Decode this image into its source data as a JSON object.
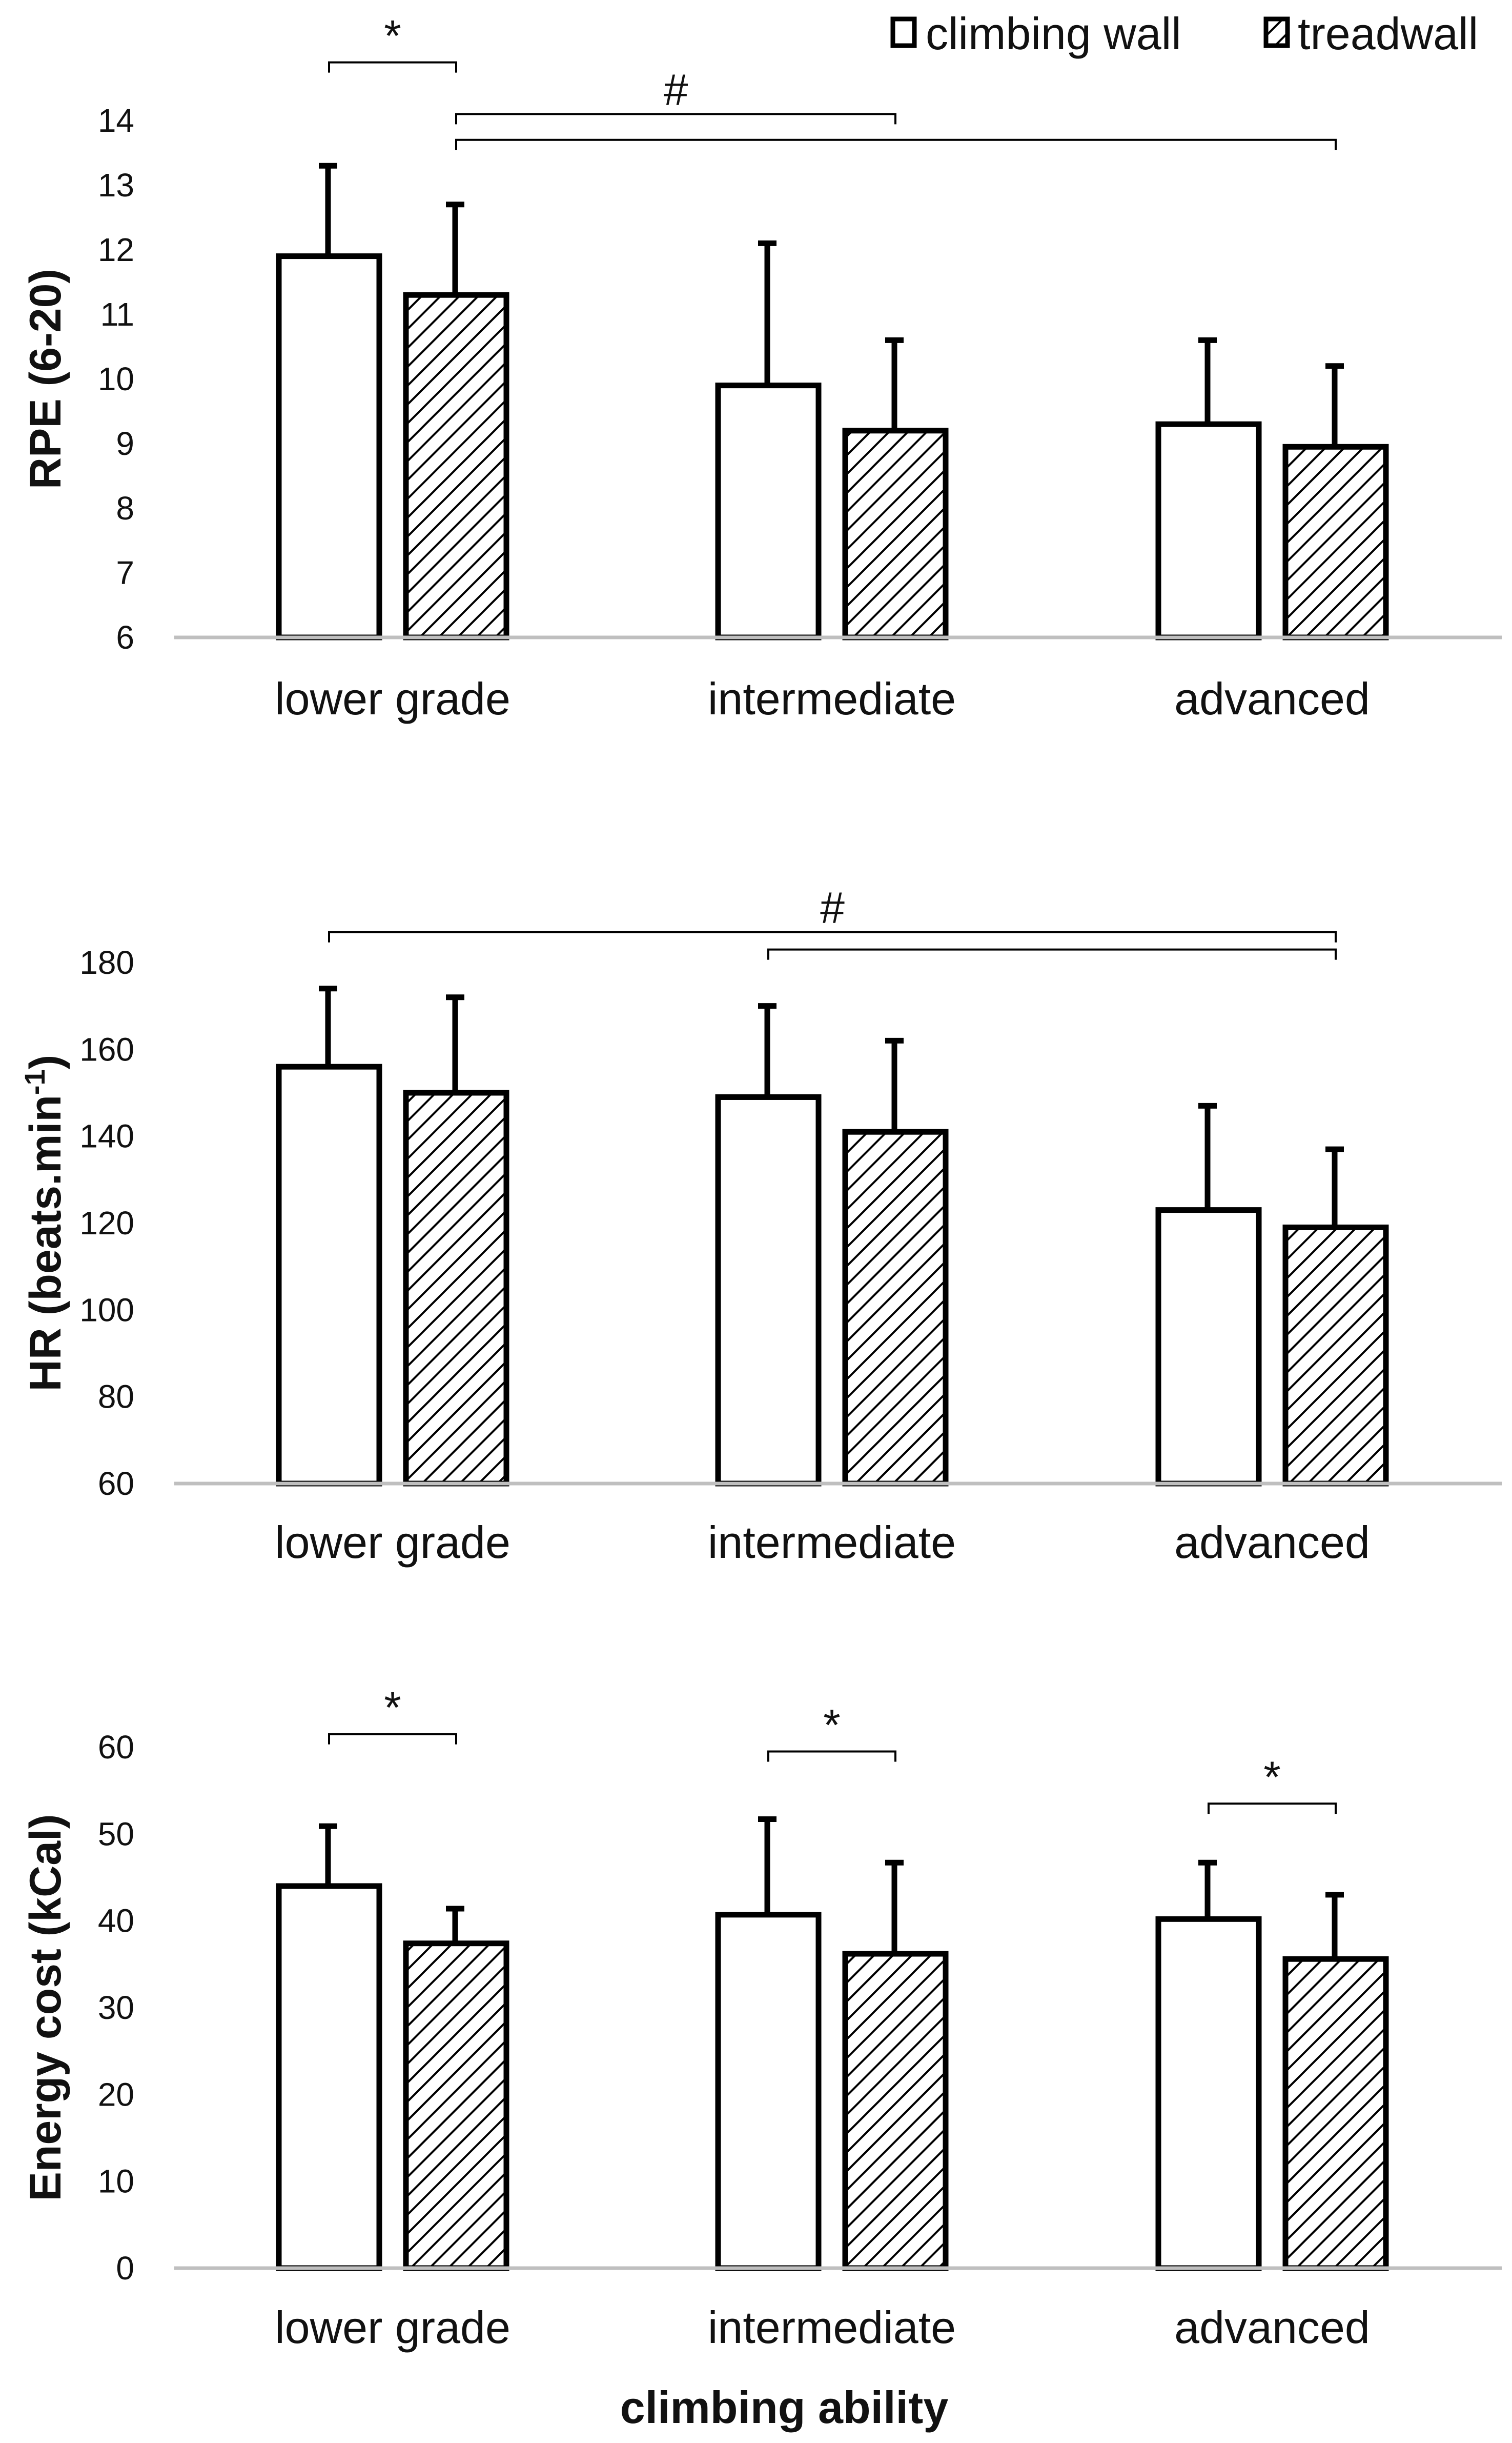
{
  "legend": {
    "series_0": "climbing wall",
    "series_1": "treadwall"
  },
  "chart_data": [
    {
      "type": "bar",
      "panel": "top",
      "ylabel": "RPE (6-20)",
      "xlabel": "",
      "ylim": [
        6,
        14
      ],
      "yticks": [
        6,
        7,
        8,
        9,
        10,
        11,
        12,
        13,
        14
      ],
      "categories": [
        "lower grade",
        "intermediate",
        "advanced"
      ],
      "series": [
        {
          "name": "climbing wall",
          "values": [
            11.9,
            9.9,
            9.3
          ],
          "errors": [
            1.4,
            2.2,
            1.3
          ]
        },
        {
          "name": "treadwall",
          "values": [
            11.3,
            9.2,
            8.95
          ],
          "errors": [
            1.4,
            1.4,
            1.25
          ]
        }
      ],
      "annotations": [
        {
          "symbol": "*",
          "from": {
            "category": 0,
            "series": 0
          },
          "to": {
            "category": 0,
            "series": 1
          },
          "level": 14.9
        },
        {
          "symbol": "#",
          "from": {
            "category": 0,
            "series": 1
          },
          "to": {
            "category": 1,
            "series": 1
          },
          "level": 14.1
        },
        {
          "symbol": "",
          "from": {
            "category": 0,
            "series": 1
          },
          "to": {
            "category": 2,
            "series": 1
          },
          "level": 13.7
        }
      ]
    },
    {
      "type": "bar",
      "panel": "middle",
      "ylabel": "HR (beats.min",
      "ylabel_sup": "-1",
      "ylabel_tail": ")",
      "xlabel": "",
      "ylim": [
        60,
        180
      ],
      "yticks": [
        60,
        80,
        100,
        120,
        140,
        160,
        180
      ],
      "categories": [
        "lower grade",
        "intermediate",
        "advanced"
      ],
      "series": [
        {
          "name": "climbing wall",
          "values": [
            156,
            149,
            123
          ],
          "errors": [
            18,
            21,
            24
          ]
        },
        {
          "name": "treadwall",
          "values": [
            150,
            141,
            119
          ],
          "errors": [
            22,
            21,
            18
          ]
        }
      ],
      "annotations": [
        {
          "symbol": "#",
          "from": {
            "category": 0,
            "series": 0
          },
          "to": {
            "category": 2,
            "series": 1
          },
          "level": 187
        },
        {
          "symbol": "",
          "from": {
            "category": 1,
            "series": 0
          },
          "to": {
            "category": 2,
            "series": 1
          },
          "level": 183
        }
      ]
    },
    {
      "type": "bar",
      "panel": "bottom",
      "ylabel": "Energy cost (kCal)",
      "xlabel": "climbing ability",
      "ylim": [
        0,
        60
      ],
      "yticks": [
        0,
        10,
        20,
        30,
        40,
        50,
        60
      ],
      "categories": [
        "lower grade",
        "intermediate",
        "advanced"
      ],
      "series": [
        {
          "name": "climbing wall",
          "values": [
            44,
            40.7,
            40.2
          ],
          "errors": [
            6.9,
            11,
            6.5
          ]
        },
        {
          "name": "treadwall",
          "values": [
            37.4,
            36.2,
            35.6
          ],
          "errors": [
            4,
            10.5,
            7.4
          ]
        }
      ],
      "annotations": [
        {
          "symbol": "*",
          "from": {
            "category": 0,
            "series": 0
          },
          "to": {
            "category": 0,
            "series": 1
          },
          "level": 61.5
        },
        {
          "symbol": "*",
          "from": {
            "category": 1,
            "series": 0
          },
          "to": {
            "category": 1,
            "series": 1
          },
          "level": 59.5
        },
        {
          "symbol": "*",
          "from": {
            "category": 2,
            "series": 0
          },
          "to": {
            "category": 2,
            "series": 1
          },
          "level": 53.5
        }
      ]
    }
  ]
}
